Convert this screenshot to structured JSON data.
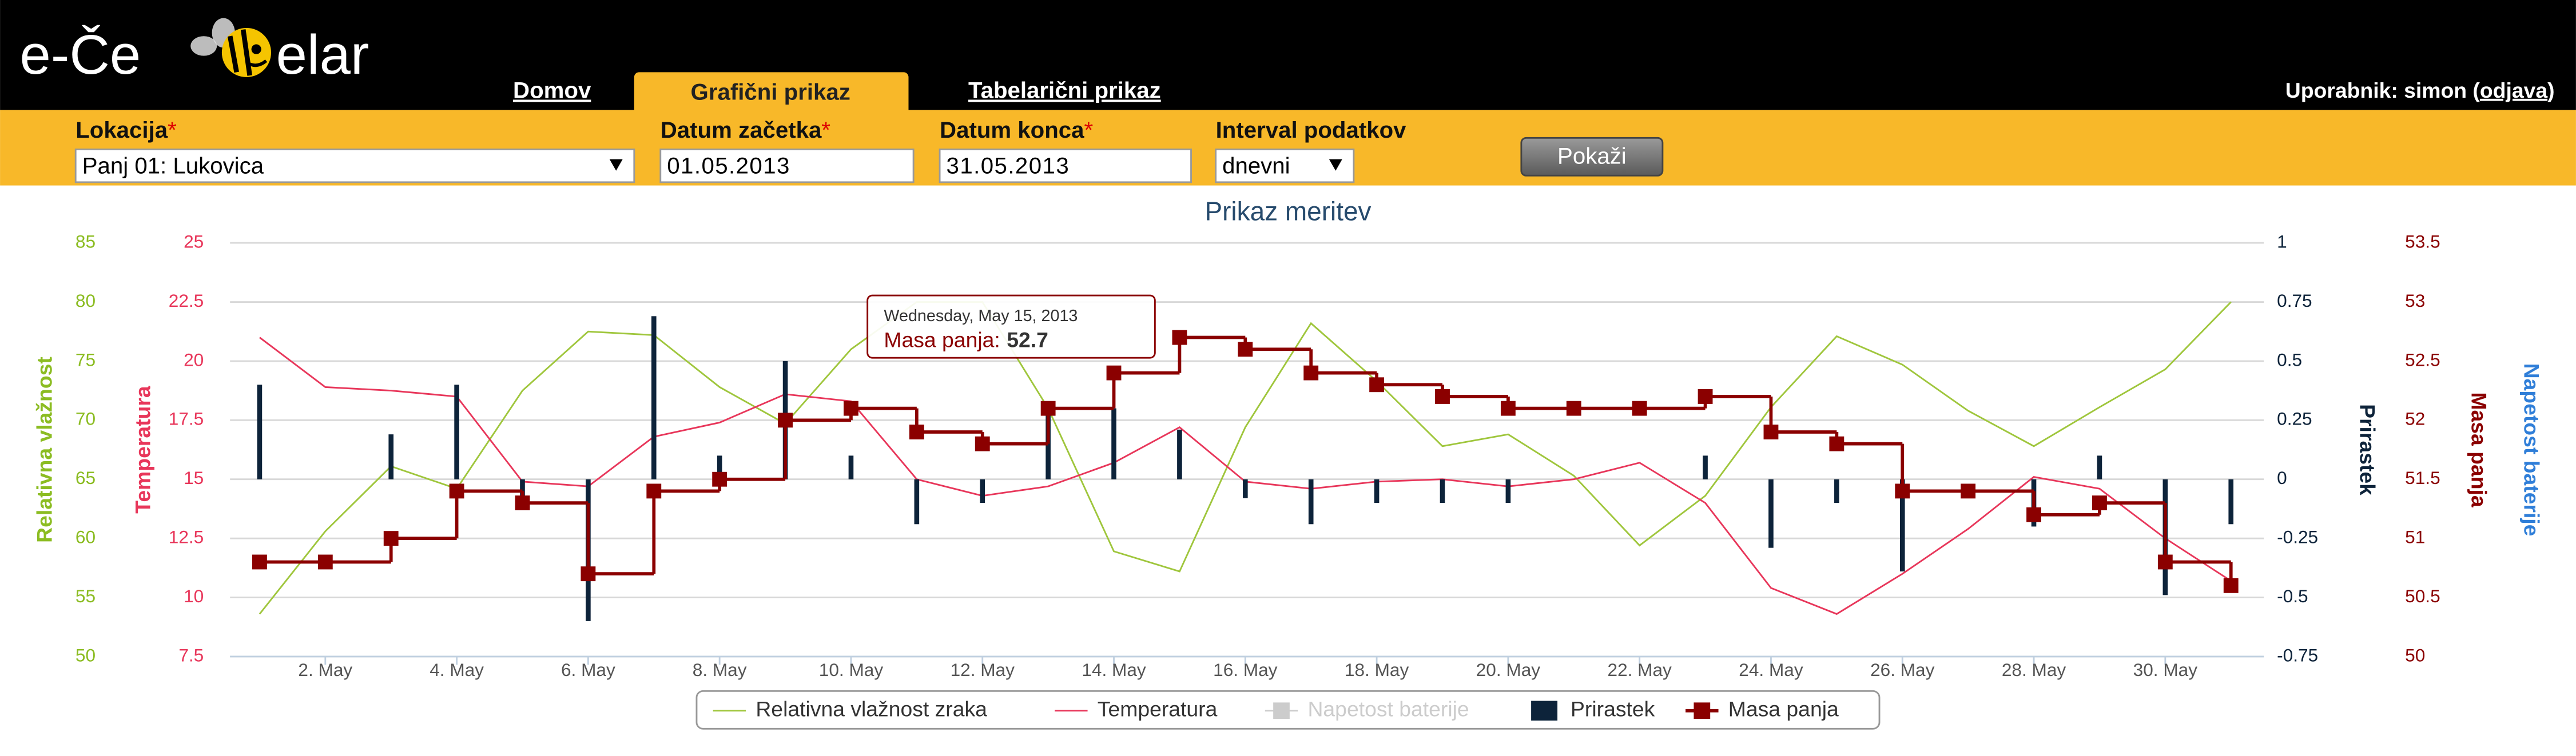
{
  "header": {
    "logo_left": "e-Če",
    "logo_right": "elar",
    "nav": [
      "Domov",
      "Grafični prikaz",
      "Tabelarični prikaz"
    ],
    "user_prefix": "Uporabnik: simon (",
    "logout": "odjava",
    "user_suffix": ")"
  },
  "form": {
    "required_mark": "*",
    "fields": [
      {
        "label": "Lokacija",
        "value": "Panj 01: Lukovica"
      },
      {
        "label": "Datum začetka",
        "value": "01.05.2013"
      },
      {
        "label": "Datum konca",
        "value": "31.05.2013"
      },
      {
        "label": "Interval podatkov",
        "value": "dnevni"
      }
    ],
    "button": "Pokaži"
  },
  "chart_data": {
    "type": "combo",
    "title": "Prikaz meritev",
    "categories": [
      null,
      "2. May",
      null,
      "4. May",
      null,
      "6. May",
      null,
      "8. May",
      null,
      "10. May",
      null,
      "12. May",
      null,
      "14. May",
      null,
      "16. May",
      null,
      "18. May",
      null,
      "20. May",
      null,
      "22. May",
      null,
      "24. May",
      null,
      "26. May",
      null,
      "28. May",
      null,
      "30. May",
      null
    ],
    "grid": true,
    "y_axes": [
      {
        "title": "Relativna vlažnost",
        "color": "#8bbc21",
        "ylim": [
          50,
          85
        ],
        "yticks": [
          50,
          55,
          60,
          65,
          70,
          75,
          80,
          85
        ]
      },
      {
        "title": "Temperatura",
        "color": "#e8365a",
        "ylim": [
          7.5,
          25
        ],
        "yticks": [
          7.5,
          10,
          12.5,
          15,
          17.5,
          20,
          22.5,
          25
        ]
      },
      {
        "title": "Prirastek",
        "color": "#0d233a",
        "ylim": [
          -0.75,
          1
        ],
        "yticks": [
          -0.75,
          -0.5,
          -0.25,
          0,
          0.25,
          0.5,
          0.75,
          1
        ]
      },
      {
        "title": "Masa panja",
        "color": "#8b0000",
        "ylim": [
          50,
          53.5
        ],
        "yticks": [
          50,
          50.5,
          51,
          51.5,
          52,
          52.5,
          53,
          53.5
        ]
      },
      {
        "title": "Napetost baterije",
        "color": "#2f7ed8"
      }
    ],
    "series": [
      {
        "name": "Relativna vlažnost zraka",
        "type": "line",
        "axis": 0,
        "color": "#9fc63c",
        "values": [
          53.6,
          60.6,
          66.1,
          64.2,
          72.5,
          77.5,
          77.2,
          72.8,
          69.7,
          76,
          80,
          80,
          71,
          58.9,
          57.2,
          69.4,
          78.2,
          73.3,
          67.8,
          68.8,
          65.3,
          59.4,
          63.6,
          71.1,
          77.1,
          74.7,
          70.8,
          67.8,
          71.1,
          74.3,
          80
        ]
      },
      {
        "name": "Temperatura",
        "type": "line",
        "axis": 1,
        "color": "#e8365a",
        "values": [
          21,
          18.9,
          18.75,
          18.5,
          14.9,
          14.7,
          16.8,
          17.4,
          18.6,
          18.3,
          15,
          14.3,
          14.7,
          15.7,
          17.2,
          14.9,
          14.6,
          14.9,
          15,
          14.7,
          15,
          15.7,
          14,
          10.4,
          9.3,
          11,
          12.9,
          15.1,
          14.6,
          12.5,
          10.7
        ]
      },
      {
        "name": "Napetost baterije",
        "type": "hidden",
        "axis": 4,
        "color": "#cccccc"
      },
      {
        "name": "Prirastek",
        "type": "bar",
        "axis": 2,
        "color": "#0d233a",
        "values": [
          0.4,
          0,
          0.19,
          0.4,
          -0.1,
          -0.6,
          0.69,
          0.1,
          0.5,
          0.1,
          -0.19,
          -0.1,
          0.3,
          0.3,
          0.21,
          -0.08,
          -0.19,
          -0.1,
          -0.1,
          -0.1,
          0,
          0,
          0.1,
          -0.29,
          -0.1,
          -0.39,
          0,
          -0.2,
          0.1,
          -0.49,
          -0.19
        ]
      },
      {
        "name": "Masa panja",
        "type": "step",
        "axis": 3,
        "color": "#8b0000",
        "values": [
          50.8,
          50.8,
          51,
          51.4,
          51.3,
          50.7,
          51.4,
          51.5,
          52,
          52.1,
          51.9,
          51.8,
          52.1,
          52.4,
          52.7,
          52.6,
          52.4,
          52.3,
          52.2,
          52.1,
          52.1,
          52.1,
          52.2,
          51.9,
          51.8,
          51.4,
          51.4,
          51.2,
          51.3,
          50.8,
          50.6
        ]
      }
    ],
    "tooltip": {
      "header": "Wednesday, May 15, 2013",
      "label": "Masa panja:",
      "value": 52.7
    }
  }
}
